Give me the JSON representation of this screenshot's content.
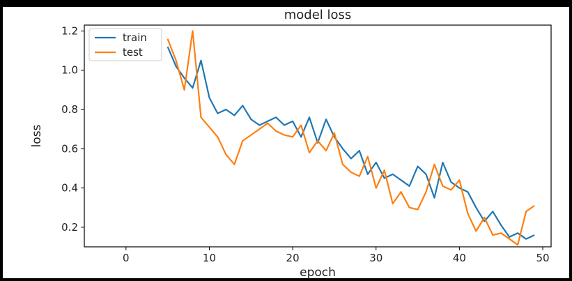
{
  "chart_data": {
    "type": "line",
    "title": "model loss",
    "xlabel": "epoch",
    "ylabel": "loss",
    "xlim": [
      -5,
      51
    ],
    "ylim": [
      0.1,
      1.23
    ],
    "xticks": [
      0,
      10,
      20,
      30,
      40,
      50
    ],
    "yticks": [
      0.2,
      0.4,
      0.6,
      0.8,
      1.0,
      1.2
    ],
    "ytick_labels": [
      "0.2",
      "0.4",
      "0.6",
      "0.8",
      "1.0",
      "1.2"
    ],
    "grid": false,
    "legend_position": "upper-left",
    "series": [
      {
        "name": "train",
        "color": "#1f77b4",
        "x": [
          5,
          6,
          7,
          8,
          9,
          10,
          11,
          12,
          13,
          14,
          15,
          16,
          17,
          18,
          19,
          20,
          21,
          22,
          23,
          24,
          25,
          26,
          27,
          28,
          29,
          30,
          31,
          32,
          33,
          34,
          35,
          36,
          37,
          38,
          39,
          40,
          41,
          42,
          43,
          44,
          45,
          46,
          47,
          48,
          49
        ],
        "y": [
          1.12,
          1.02,
          0.96,
          0.91,
          1.05,
          0.86,
          0.78,
          0.8,
          0.77,
          0.82,
          0.75,
          0.72,
          0.74,
          0.76,
          0.72,
          0.74,
          0.66,
          0.76,
          0.63,
          0.75,
          0.66,
          0.6,
          0.55,
          0.59,
          0.47,
          0.53,
          0.45,
          0.47,
          0.44,
          0.41,
          0.51,
          0.47,
          0.35,
          0.53,
          0.43,
          0.4,
          0.38,
          0.3,
          0.23,
          0.28,
          0.21,
          0.15,
          0.17,
          0.14,
          0.16
        ]
      },
      {
        "name": "test",
        "color": "#ff7f0e",
        "x": [
          5,
          6,
          7,
          8,
          9,
          10,
          11,
          12,
          13,
          14,
          15,
          16,
          17,
          18,
          19,
          20,
          21,
          22,
          23,
          24,
          25,
          26,
          27,
          28,
          29,
          30,
          31,
          32,
          33,
          34,
          35,
          36,
          37,
          38,
          39,
          40,
          41,
          42,
          43,
          44,
          45,
          46,
          47,
          48,
          49
        ],
        "y": [
          1.16,
          1.05,
          0.9,
          1.2,
          0.76,
          0.71,
          0.66,
          0.57,
          0.52,
          0.64,
          0.67,
          0.7,
          0.73,
          0.69,
          0.67,
          0.66,
          0.72,
          0.58,
          0.64,
          0.59,
          0.68,
          0.52,
          0.48,
          0.46,
          0.56,
          0.4,
          0.49,
          0.32,
          0.38,
          0.3,
          0.29,
          0.38,
          0.52,
          0.41,
          0.39,
          0.44,
          0.27,
          0.18,
          0.25,
          0.16,
          0.17,
          0.14,
          0.11,
          0.28,
          0.31
        ]
      }
    ]
  }
}
